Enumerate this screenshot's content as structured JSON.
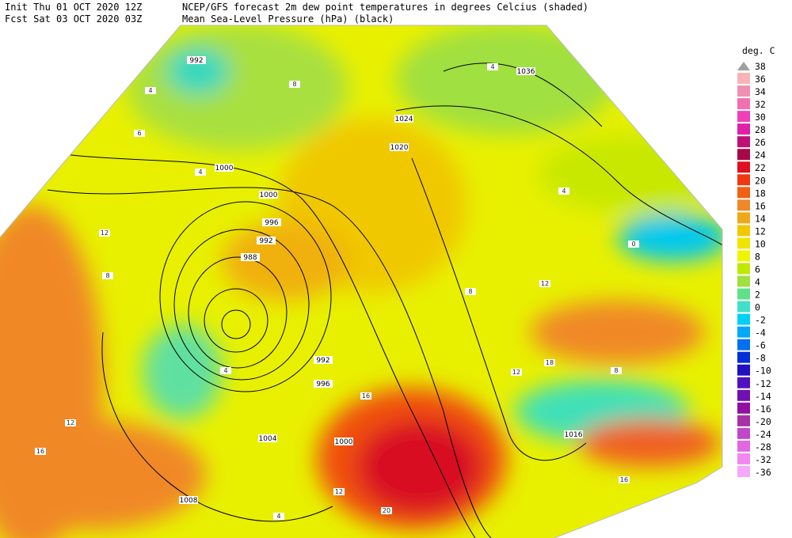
{
  "header": {
    "init": "Init  Thu 01 OCT 2020 12Z",
    "fcst": "Fcst Sat 03 OCT 2020 03Z",
    "title": "NCEP/GFS forecast 2m dew point temperatures in degrees Celcius (shaded)",
    "subtitle": "Mean Sea-Level Pressure (hPa) (black)"
  },
  "legend": {
    "unit": "deg. C",
    "levels": [
      "38",
      "36",
      "34",
      "32",
      "30",
      "28",
      "26",
      "24",
      "22",
      "20",
      "18",
      "16",
      "14",
      "12",
      "10",
      "8",
      "6",
      "4",
      "2",
      "0",
      "-2",
      "-4",
      "-6",
      "-8",
      "-10",
      "-12",
      "-14",
      "-16",
      "-20",
      "-24",
      "-28",
      "-32",
      "-36"
    ],
    "colors": [
      "#a0a0a0",
      "#f8b4b4",
      "#f090b0",
      "#f070b0",
      "#f040b8",
      "#e020a8",
      "#c01078",
      "#a80848",
      "#e01020",
      "#f03810",
      "#f06010",
      "#f08828",
      "#f0a818",
      "#f0c800",
      "#f0e400",
      "#f0f400",
      "#c0e800",
      "#a0e040",
      "#60e088",
      "#40e0c8",
      "#00d0f8",
      "#00a8f8",
      "#0070f0",
      "#0030d8",
      "#2010c0",
      "#5010c0",
      "#7010b0",
      "#9010a0",
      "#a830a8",
      "#c048c8",
      "#e068e0",
      "#f088f0",
      "#f8a8f8"
    ]
  },
  "map": {
    "isobar_labels": [
      "992",
      "1036",
      "1024",
      "1020",
      "1000",
      "1000",
      "996",
      "992",
      "988",
      "992",
      "996",
      "1004",
      "1000",
      "1008",
      "1016"
    ],
    "value_labels": [
      "4",
      "8",
      "4",
      "6",
      "12",
      "8",
      "12",
      "8",
      "4",
      "12",
      "16",
      "20",
      "4",
      "12",
      "16",
      "8",
      "4",
      "0",
      "12",
      "16",
      "18",
      "4"
    ]
  }
}
